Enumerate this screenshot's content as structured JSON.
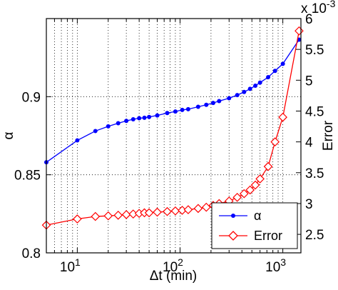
{
  "chart_data": {
    "type": "line",
    "xlabel": "Δt (min)",
    "x_scale": "log",
    "xlim": [
      5,
      1500
    ],
    "x_ticks": [
      10,
      100,
      1000
    ],
    "x_tick_labels": [
      {
        "base": "10",
        "exp": "1"
      },
      {
        "base": "10",
        "exp": "2"
      },
      {
        "base": "10",
        "exp": "3"
      }
    ],
    "ylabel_left": "α",
    "ylim_left": [
      0.8,
      0.95
    ],
    "y_ticks_left": [
      0.8,
      0.85,
      0.9
    ],
    "y_tick_labels_left": [
      "0.8",
      "0.85",
      "0.9"
    ],
    "ylabel_right": "Error",
    "ylim_right": [
      0.0022,
      0.006
    ],
    "y_ticks_right": [
      0.0025,
      0.003,
      0.0035,
      0.004,
      0.0045,
      0.005,
      0.0055,
      0.006
    ],
    "y_tick_labels_right": [
      "2.5",
      "3",
      "3.5",
      "4",
      "4.5",
      "5",
      "5.5",
      "6"
    ],
    "right_axis_multiplier": {
      "base": "x 10",
      "exp": "-3"
    },
    "grid": true,
    "legend": "bottom-right",
    "x": [
      5,
      10,
      15,
      20,
      25,
      30,
      35,
      40,
      45,
      50,
      60,
      75,
      90,
      105,
      120,
      150,
      180,
      210,
      240,
      300,
      360,
      420,
      480,
      540,
      600,
      720,
      840,
      1000,
      1440
    ],
    "series": [
      {
        "name": "α",
        "axis": "left",
        "color": "#0000ff",
        "marker": "dot",
        "values": [
          0.858,
          0.872,
          0.878,
          0.881,
          0.883,
          0.8845,
          0.8855,
          0.8862,
          0.8865,
          0.887,
          0.888,
          0.8895,
          0.8905,
          0.8915,
          0.892,
          0.8935,
          0.8948,
          0.896,
          0.8972,
          0.899,
          0.901,
          0.903,
          0.905,
          0.907,
          0.909,
          0.9125,
          0.9165,
          0.921,
          0.9365
        ]
      },
      {
        "name": "Error",
        "axis": "right",
        "color": "#ff0000",
        "marker": "diamond",
        "values": [
          0.00265,
          0.00275,
          0.00279,
          0.0028,
          0.00281,
          0.00282,
          0.00283,
          0.00284,
          0.00285,
          0.00285,
          0.00286,
          0.00287,
          0.00288,
          0.00289,
          0.0029,
          0.00292,
          0.00294,
          0.00297,
          0.003,
          0.00304,
          0.0031,
          0.00316,
          0.00322,
          0.0033,
          0.0034,
          0.0036,
          0.004,
          0.0044,
          0.0058
        ]
      }
    ]
  }
}
